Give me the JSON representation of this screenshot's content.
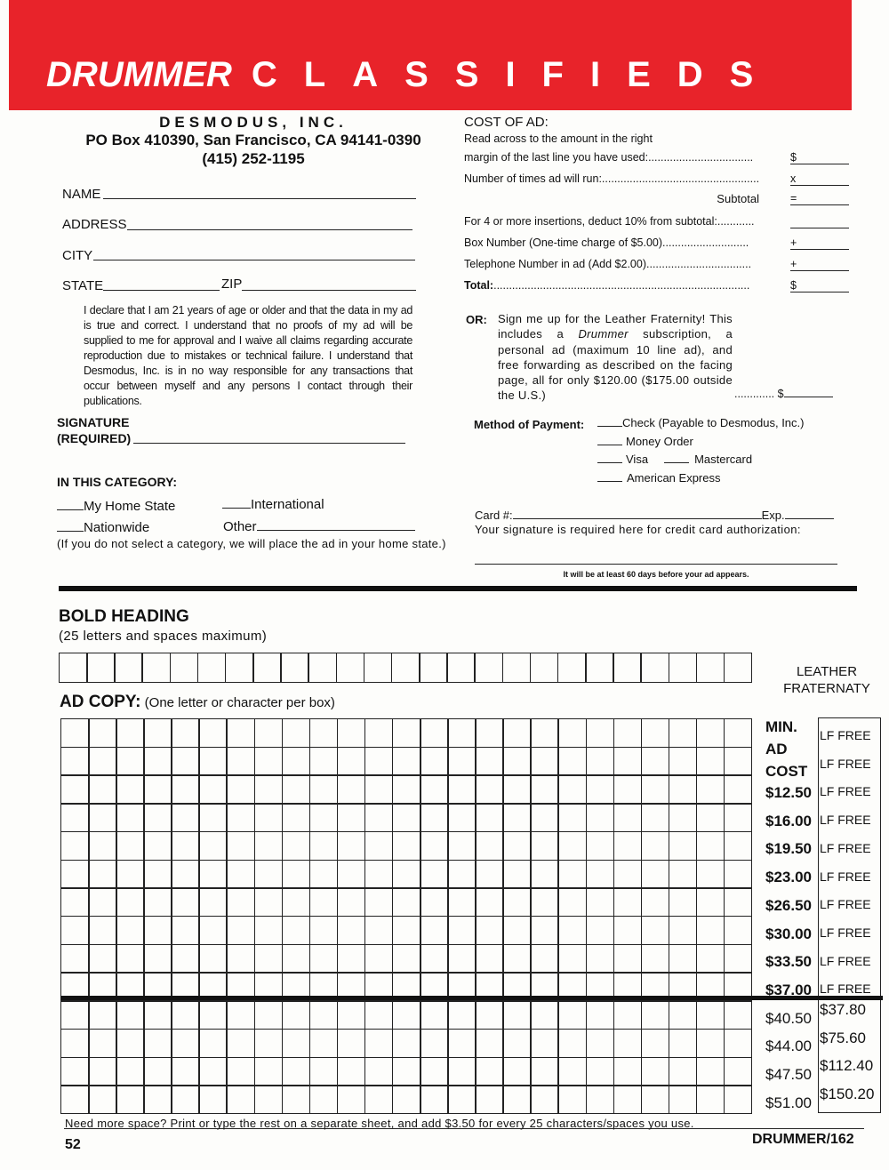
{
  "banner": {
    "title_italic": "DRUMMER",
    "title_spaced": "CLASSIFIEDS"
  },
  "publisher": {
    "name": "DESMODUS, INC.",
    "address": "PO Box 410390, San Francisco, CA 94141-0390",
    "phone": "(415) 252-1195"
  },
  "contact_fields": {
    "name": "NAME",
    "address": "ADDRESS",
    "city": "CITY",
    "state": "STATE",
    "zip": "ZIP"
  },
  "declaration": "I declare that I am 21 years of age or older and that the data in my ad is true and correct. I understand that no proofs of my ad will be supplied to me for approval and I waive all claims regarding accurate reproduction due to mistakes or technical failure. I understand that Desmodus, Inc. is in no way responsible for any transactions that occur between myself and any persons I contact through their publications.",
  "signature": {
    "label1": "SIGNATURE",
    "label2": "(REQUIRED)"
  },
  "category": {
    "heading": "IN THIS CATEGORY:",
    "home_state": "My Home State",
    "international": "International",
    "nationwide": "Nationwide",
    "other": "Other",
    "note": "(If you do not select a category, we will place the ad in your home state.)"
  },
  "cost": {
    "heading": "COST OF AD:",
    "intro": "Read across to the amount in the right",
    "lines": [
      {
        "label": "margin of the last line you have used:",
        "dots": "..................................",
        "sym": "$"
      },
      {
        "label": "Number of times ad will run:",
        "dots": "...................................................",
        "sym": "x"
      },
      {
        "label": "Subtotal",
        "dots": "",
        "sym": "="
      },
      {
        "label": "For 4 or more insertions, deduct 10% from subtotal:",
        "dots": "............",
        "sym": ""
      },
      {
        "label": "Box Number (One-time charge of $5.00)",
        "dots": "............................",
        "sym": "+"
      },
      {
        "label": "Telephone Number in ad (Add $2.00)",
        "dots": "..................................",
        "sym": "+"
      },
      {
        "label": "Total:",
        "dots": "...................................................................................",
        "sym": "$"
      }
    ]
  },
  "leather": {
    "or": "OR:",
    "text_before": "Sign me up for the Leather Fraternity! This includes a ",
    "italic": "Drummer",
    "text_after": " subscription, a personal ad (maximum 10 line ad), and free forwarding as described on the facing page, all for only $120.00 ($175.00 outside the U.S.)",
    "dots": ".............",
    "sym": "$"
  },
  "payment": {
    "label": "Method of Payment:",
    "check": "Check (Payable to Desmodus, Inc.)",
    "money_order": "Money Order",
    "visa": "Visa",
    "mastercard": "Mastercard",
    "amex": "American Express",
    "card": "Card #:",
    "exp": "Exp.",
    "sig_note": "Your signature is required here for credit card authorization:",
    "delay_note": "It will be at least 60 days before your ad appears."
  },
  "bold_heading": {
    "title": "BOLD HEADING",
    "sub": "(25 letters and spaces maximum)"
  },
  "ad_copy": {
    "title": "AD COPY:",
    "sub": "(One letter or character per box)"
  },
  "leather_column": {
    "line1": "LEATHER",
    "line2": "FRATERNATY"
  },
  "min_cost_labels": [
    "MIN.",
    "AD",
    "COST"
  ],
  "min_cost": [
    "$12.50",
    "$16.00",
    "$19.50",
    "$23.00",
    "$26.50",
    "$30.00",
    "$33.50",
    "$37.00",
    "$40.50",
    "$44.00",
    "$47.50",
    "$51.00"
  ],
  "lf_cost": [
    "LF FREE",
    "LF FREE",
    "LF FREE",
    "LF FREE",
    "LF FREE",
    "LF FREE",
    "LF FREE",
    "LF FREE",
    "LF FREE",
    "LF FREE",
    "$37.80",
    "$75.60",
    "$112.40",
    "$150.20"
  ],
  "footer": {
    "more_space": "Need more space? Print or type the rest on a separate sheet, and add $3.50 for every 25 characters/spaces you use.",
    "page": "52",
    "issue": "DRUMMER/162"
  }
}
